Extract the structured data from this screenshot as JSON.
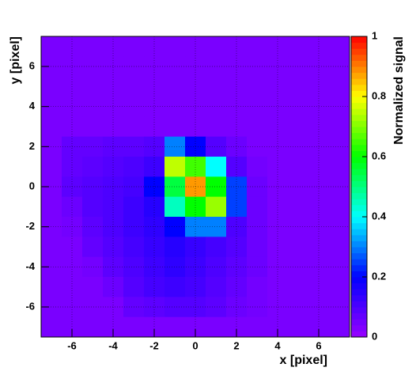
{
  "chart_data": {
    "type": "heatmap",
    "xlabel": "x [pixel]",
    "ylabel": "y [pixel]",
    "zlabel": "Normalized signal",
    "xlim": [
      -7.5,
      7.5
    ],
    "ylim": [
      -7.5,
      7.5
    ],
    "zlim": [
      0,
      1
    ],
    "xticks": [
      -6,
      -4,
      -2,
      0,
      2,
      4,
      6
    ],
    "yticks": [
      -6,
      -4,
      -2,
      0,
      2,
      4,
      6
    ],
    "zticks": [
      0,
      0.2,
      0.4,
      0.6,
      0.8,
      1
    ],
    "grid": true,
    "colorscale": [
      "#9900ff",
      "#0000ff",
      "#00ffff",
      "#00ff00",
      "#ffff00",
      "#ff0000"
    ],
    "x": [
      -7,
      -6,
      -5,
      -4,
      -3,
      -2,
      -1,
      0,
      1,
      2,
      3,
      4,
      5,
      6,
      7
    ],
    "y": [
      7,
      6,
      5,
      4,
      3,
      2,
      1,
      0,
      -1,
      -2,
      -3,
      -4,
      -5,
      -6,
      -7
    ],
    "z": [
      [
        0.04,
        0.04,
        0.04,
        0.04,
        0.04,
        0.04,
        0.04,
        0.04,
        0.04,
        0.04,
        0.04,
        0.04,
        0.04,
        0.04,
        0.04
      ],
      [
        0.04,
        0.04,
        0.04,
        0.04,
        0.04,
        0.04,
        0.04,
        0.04,
        0.04,
        0.04,
        0.04,
        0.04,
        0.04,
        0.04,
        0.04
      ],
      [
        0.04,
        0.04,
        0.04,
        0.04,
        0.04,
        0.04,
        0.04,
        0.04,
        0.04,
        0.04,
        0.04,
        0.04,
        0.04,
        0.04,
        0.04
      ],
      [
        0.04,
        0.04,
        0.04,
        0.04,
        0.04,
        0.04,
        0.04,
        0.04,
        0.04,
        0.04,
        0.04,
        0.04,
        0.04,
        0.04,
        0.04
      ],
      [
        0.04,
        0.04,
        0.04,
        0.04,
        0.04,
        0.04,
        0.04,
        0.04,
        0.04,
        0.04,
        0.04,
        0.04,
        0.04,
        0.04,
        0.04
      ],
      [
        0.04,
        0.07,
        0.07,
        0.08,
        0.08,
        0.09,
        0.3,
        0.2,
        0.09,
        0.06,
        0.04,
        0.04,
        0.04,
        0.04,
        0.04
      ],
      [
        0.04,
        0.07,
        0.08,
        0.09,
        0.1,
        0.12,
        0.75,
        0.65,
        0.4,
        0.09,
        0.05,
        0.04,
        0.04,
        0.04,
        0.04
      ],
      [
        0.04,
        0.08,
        0.09,
        0.1,
        0.11,
        0.2,
        0.55,
        0.88,
        0.6,
        0.25,
        0.06,
        0.04,
        0.04,
        0.04,
        0.04
      ],
      [
        0.04,
        0.06,
        0.09,
        0.1,
        0.12,
        0.15,
        0.45,
        0.6,
        0.72,
        0.25,
        0.06,
        0.04,
        0.04,
        0.04,
        0.04
      ],
      [
        0.04,
        0.05,
        0.08,
        0.1,
        0.12,
        0.14,
        0.2,
        0.3,
        0.3,
        0.1,
        0.06,
        0.04,
        0.04,
        0.04,
        0.04
      ],
      [
        0.04,
        0.04,
        0.07,
        0.09,
        0.11,
        0.13,
        0.15,
        0.13,
        0.11,
        0.09,
        0.06,
        0.04,
        0.04,
        0.04,
        0.04
      ],
      [
        0.04,
        0.04,
        0.05,
        0.08,
        0.1,
        0.12,
        0.14,
        0.12,
        0.1,
        0.08,
        0.06,
        0.04,
        0.04,
        0.04,
        0.04
      ],
      [
        0.04,
        0.04,
        0.04,
        0.06,
        0.09,
        0.11,
        0.12,
        0.11,
        0.09,
        0.07,
        0.05,
        0.04,
        0.04,
        0.04,
        0.04
      ],
      [
        0.04,
        0.04,
        0.04,
        0.04,
        0.07,
        0.08,
        0.09,
        0.09,
        0.08,
        0.06,
        0.05,
        0.04,
        0.04,
        0.04,
        0.04
      ],
      [
        0.04,
        0.04,
        0.04,
        0.04,
        0.04,
        0.04,
        0.04,
        0.04,
        0.04,
        0.04,
        0.04,
        0.04,
        0.04,
        0.04,
        0.04
      ]
    ]
  }
}
